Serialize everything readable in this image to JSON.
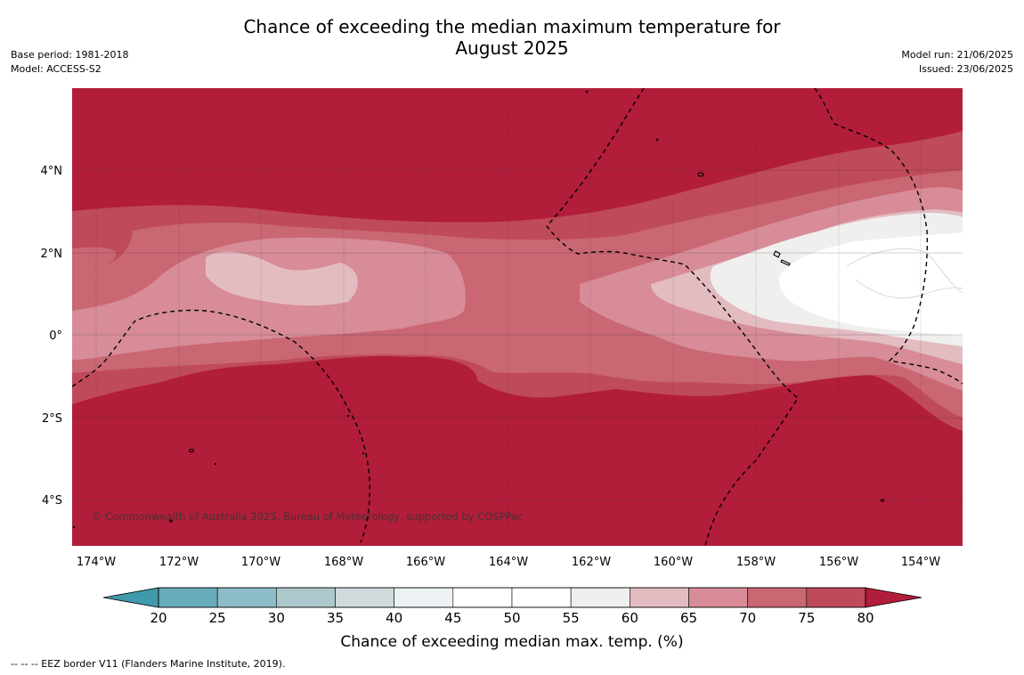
{
  "title_line1": "Chance of exceeding the median maximum temperature for",
  "title_line2": "August 2025",
  "meta_left": [
    "Base period: 1981-2018",
    "Model: ACCESS-S2"
  ],
  "meta_right": [
    "Model run: 21/06/2025",
    "Issued: 23/06/2025"
  ],
  "copyright": "© Commonwealth of Australia 2025, Bureau of Meteorology, supported by COSPPac",
  "footnote": "-- -- -- EEZ border V11 (Flanders Marine Institute, 2019).",
  "lon_labels": [
    "174°W",
    "172°W",
    "170°W",
    "168°W",
    "166°W",
    "164°W",
    "162°W",
    "160°W",
    "158°W",
    "156°W",
    "154°W"
  ],
  "lat_labels": [
    "4°N",
    "2°N",
    "0°",
    "2°S",
    "4°S"
  ],
  "colorbar": {
    "label": "Chance of exceeding median max. temp. (%)",
    "ticks": [
      "20",
      "25",
      "30",
      "35",
      "40",
      "45",
      "50",
      "55",
      "60",
      "65",
      "70",
      "75",
      "80"
    ],
    "colors": {
      "below": "#3f9aab",
      "bins": [
        "#68acbc",
        "#8cbcc7",
        "#adc8cd",
        "#d0dadc",
        "#ecf2f3",
        "#ffffff",
        "#ffffff",
        "#efefee",
        "#e2bcc1",
        "#d78c97",
        "#c96773",
        "#bf4a59"
      ],
      "above": "#b21d39"
    }
  },
  "field_colors": {
    "p80": "#b21d39",
    "p75": "#bf4a59",
    "p70": "#c96773",
    "p65": "#d78c97",
    "p60": "#e2bcc1",
    "p55": "#efefee",
    "p50": "#ffffff"
  }
}
